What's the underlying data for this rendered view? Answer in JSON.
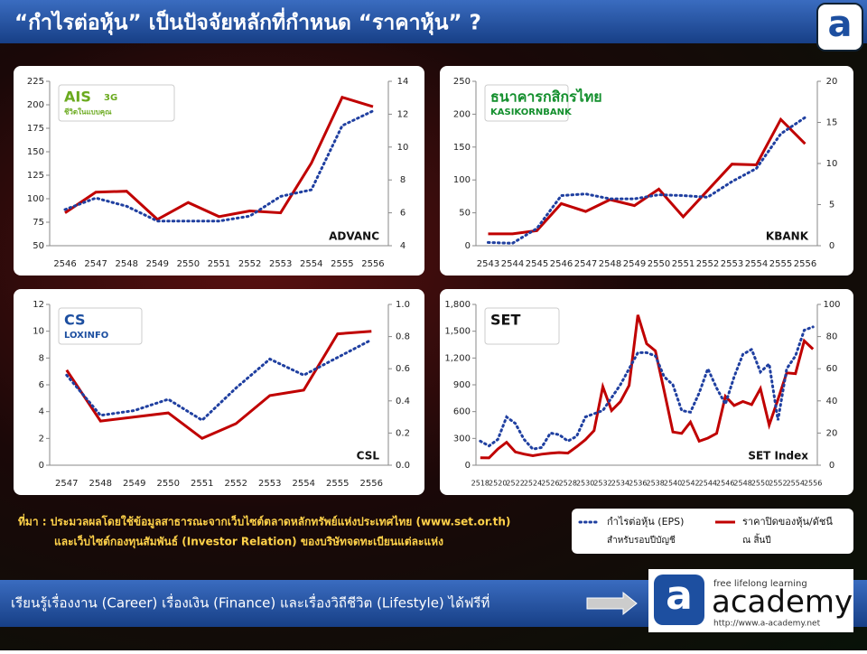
{
  "header": {
    "title": "“กำไรต่อหุ้น” เป็นปัจจัยหลักที่กำหนด “ราคาหุ้น” ?",
    "logo": "a"
  },
  "chart_data": [
    {
      "type": "line",
      "label": "ADVANC",
      "logo": [
        "AIS",
        "3G",
        "ชีวิตในแบบคุณ"
      ],
      "logo_color": "#6aaa1e",
      "categories": [
        "2546",
        "2547",
        "2548",
        "2549",
        "2550",
        "2551",
        "2552",
        "2553",
        "2554",
        "2555",
        "2556"
      ],
      "ylim": [
        50,
        225
      ],
      "yticks": [
        50,
        75,
        100,
        125,
        150,
        175,
        200,
        225
      ],
      "y2lim": [
        4,
        14
      ],
      "y2ticks": [
        4,
        6,
        8,
        10,
        12,
        14
      ],
      "series": [
        {
          "color": "#c00000",
          "style": "solid",
          "values": [
            85,
            107,
            108,
            78,
            96,
            81,
            87,
            85,
            138,
            208,
            198
          ]
        },
        {
          "color": "#1f3fa0",
          "style": "dotted",
          "axis": "y2",
          "values": [
            6.2,
            6.9,
            6.4,
            5.5,
            5.5,
            5.5,
            5.8,
            7.0,
            7.4,
            11.3,
            12.2
          ]
        }
      ]
    },
    {
      "type": "line",
      "label": "KBANK",
      "logo": [
        "ธนาคารกสิกรไทย",
        "KASIKORNBANK"
      ],
      "logo_color": "#138f2d",
      "categories": [
        "2543",
        "2544",
        "2545",
        "2546",
        "2547",
        "2548",
        "2549",
        "2550",
        "2551",
        "2552",
        "2553",
        "2554",
        "2555",
        "2556"
      ],
      "ylim": [
        0,
        250
      ],
      "yticks": [
        0,
        50,
        100,
        150,
        200,
        250
      ],
      "y2lim": [
        0,
        20
      ],
      "y2ticks": [
        0,
        5,
        10,
        15,
        20
      ],
      "series": [
        {
          "color": "#c00000",
          "style": "solid",
          "values": [
            18,
            18,
            23,
            64,
            52,
            70,
            61,
            86,
            44,
            84,
            124,
            123,
            192,
            155
          ]
        },
        {
          "color": "#1f3fa0",
          "style": "dotted",
          "axis": "y2",
          "values": [
            0.4,
            0.3,
            2.1,
            6.1,
            6.3,
            5.7,
            5.7,
            6.2,
            6.1,
            5.9,
            7.8,
            9.4,
            13.6,
            15.6
          ]
        }
      ]
    },
    {
      "type": "line",
      "label": "CSL",
      "logo": [
        "CS",
        "LOXINFO"
      ],
      "logo_color": "#1d4fa0",
      "categories": [
        "2547",
        "2548",
        "2549",
        "2550",
        "2551",
        "2552",
        "2553",
        "2554",
        "2555",
        "2556"
      ],
      "ylim": [
        0,
        12
      ],
      "yticks": [
        0,
        2,
        4,
        6,
        8,
        10,
        12
      ],
      "y2lim": [
        0,
        1
      ],
      "y2ticks": [
        {
          "value": 0,
          "label": "0.0"
        },
        0.2,
        0.4,
        0.6,
        0.8,
        {
          "value": 1,
          "label": "1.0"
        }
      ],
      "series": [
        {
          "color": "#c00000",
          "style": "solid",
          "values": [
            7.1,
            3.3,
            3.6,
            3.9,
            2.0,
            3.1,
            5.2,
            5.6,
            9.8,
            10.0
          ]
        },
        {
          "color": "#1f3fa0",
          "style": "dotted",
          "axis": "y2",
          "values": [
            0.56,
            0.31,
            0.34,
            0.41,
            0.28,
            0.48,
            0.66,
            0.56,
            0.67,
            0.78
          ]
        }
      ]
    },
    {
      "type": "line",
      "label": "SET Index",
      "logo": [
        "SET"
      ],
      "logo_color": "#111111",
      "categories": [
        "2518",
        null,
        "2520",
        null,
        "2522",
        null,
        "2524",
        null,
        "2526",
        null,
        "2528",
        null,
        "2530",
        null,
        "2532",
        null,
        "2534",
        null,
        "2536",
        null,
        "2538",
        null,
        "2540",
        null,
        "2542",
        null,
        "2544",
        null,
        "2546",
        null,
        "2548",
        null,
        "2550",
        null,
        "2552",
        null,
        "2554",
        null,
        "2556"
      ],
      "ylim": [
        0,
        1800
      ],
      "yticks": [
        0,
        300,
        600,
        900,
        {
          "value": 1200,
          "label": "1,200"
        },
        {
          "value": 1500,
          "label": "1,500"
        },
        {
          "value": 1800,
          "label": "1,800"
        }
      ],
      "y2lim": [
        0,
        100
      ],
      "y2ticks": [
        0,
        20,
        40,
        60,
        80,
        100
      ],
      "series": [
        {
          "color": "#c00000",
          "style": "solid",
          "values": [
            84,
            82,
            181,
            257,
            149,
            124,
            106,
            123,
            134,
            142,
            135,
            207,
            285,
            387,
            879,
            612,
            711,
            893,
            1682,
            1360,
            1280,
            832,
            372,
            356,
            482,
            269,
            303,
            356,
            772,
            668,
            713,
            679,
            858,
            450,
            735,
            1033,
            1025,
            1392,
            1299
          ]
        },
        {
          "color": "#1f3fa0",
          "style": "dotted",
          "axis": "y2",
          "values": [
            15,
            12,
            16,
            30,
            26,
            16,
            10,
            11,
            20,
            19,
            15,
            18,
            30,
            32,
            34,
            42,
            50,
            60,
            70,
            70,
            68,
            55,
            50,
            34,
            33,
            45,
            60,
            48,
            38,
            55,
            69,
            72,
            58,
            63,
            28,
            60,
            68,
            84,
            86
          ]
        }
      ]
    }
  ],
  "source": {
    "lines": [
      "ที่มา : ประมวลผลโดยใช้ข้อมูลสาธารณะจากเว็บไซต์ตลาดหลักทรัพย์แห่งประเทศไทย (www.set.or.th)",
      "และเว็บไซต์กองทุนสัมพันธ์ (Investor Relation) ของบริษัทจดทะเบียนแต่ละแห่ง"
    ]
  },
  "legend": {
    "items": [
      {
        "label": "กำไรต่อหุ้น (EPS)",
        "sublabel": "สำหรับรอบปีบัญชี",
        "color": "#1f3fa0",
        "style": "dotted"
      },
      {
        "label": "ราคาปิดของหุ้น/ดัชนี",
        "sublabel": "ณ สิ้นปี",
        "color": "#c00000",
        "style": "solid"
      }
    ]
  },
  "footer": {
    "text": "เรียนรู้เรื่องงาน (Career) เรื่องเงิน (Finance) และเรื่องวิถีชีวิต (Lifestyle) ได้ฟรีที่",
    "brand": {
      "icon": "a",
      "name": "academy",
      "tagline": "free lifelong learning",
      "url": "http://www.a-academy.net"
    }
  }
}
